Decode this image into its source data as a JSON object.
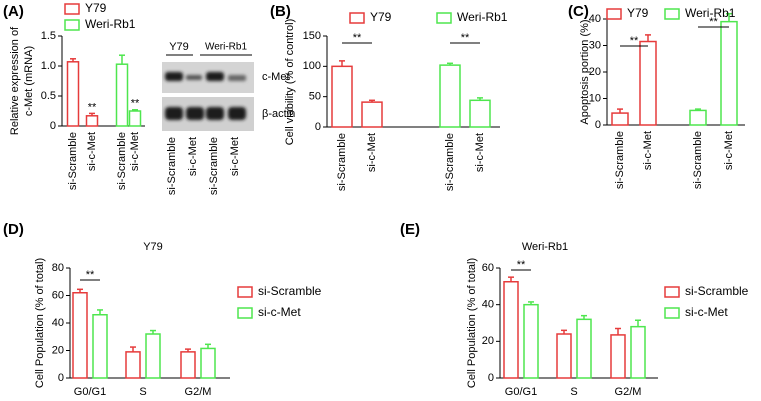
{
  "chart_data": [
    {
      "type": "bar",
      "panel": "(A)",
      "ylabel": [
        "Relative expression of",
        "c-Met (mRNA)"
      ],
      "categories": [
        "si-Scramble",
        "si-c-Met",
        "si-Scramble",
        "si-c-Met"
      ],
      "series": [
        {
          "name": "Y79",
          "color": "#e63b3b",
          "values": [
            1.07,
            0.17,
            null,
            null
          ],
          "errors": [
            0.05,
            0.04,
            null,
            null
          ]
        },
        {
          "name": "Weri-Rb1",
          "color": "#4ee64e",
          "values": [
            null,
            null,
            1.03,
            0.25
          ],
          "errors": [
            null,
            null,
            0.15,
            0.02
          ]
        }
      ],
      "ylim": [
        0,
        1.5
      ],
      "yticks": [
        0,
        0.5,
        {
          "value": 1,
          "label": "1.0"
        },
        1.5
      ],
      "legend": "top",
      "annotations": [
        "**",
        "**"
      ]
    },
    {
      "type": "bar",
      "panel": "(B)",
      "ylabel": "Cell viability (% of control)",
      "categories": [
        "si-Scramble",
        "si-c-Met",
        "si-Scramble",
        "si-c-Met"
      ],
      "series": [
        {
          "name": "Y79",
          "color": "#e63b3b",
          "values": [
            100,
            41,
            null,
            null
          ],
          "errors": [
            9,
            3,
            null,
            null
          ]
        },
        {
          "name": "Weri-Rb1",
          "color": "#4ee64e",
          "values": [
            null,
            null,
            102,
            44
          ],
          "errors": [
            null,
            null,
            3,
            4
          ]
        }
      ],
      "ylim": [
        0,
        150
      ],
      "yticks": [
        0,
        50,
        100,
        150
      ],
      "legend": "top",
      "annotations": [
        "**",
        "**"
      ]
    },
    {
      "type": "bar",
      "panel": "(C)",
      "ylabel": "Apoptosis portion (%)",
      "categories": [
        "si-Scramble",
        "si-c-Met",
        "si-Scramble",
        "si-c-Met"
      ],
      "series": [
        {
          "name": "Y79",
          "color": "#e63b3b",
          "values": [
            4.5,
            31.5,
            null,
            null
          ],
          "errors": [
            1.5,
            2.5,
            null,
            null
          ]
        },
        {
          "name": "Weri-Rb1",
          "color": "#4ee64e",
          "values": [
            null,
            null,
            5.5,
            39
          ],
          "errors": [
            null,
            null,
            0.5,
            3
          ]
        }
      ],
      "ylim": [
        0,
        40
      ],
      "yticks": [
        0,
        10,
        20,
        30,
        40
      ],
      "legend": "top",
      "annotations": [
        "**",
        "**"
      ]
    },
    {
      "type": "bar",
      "panel": "(D)",
      "title": "Y79",
      "ylabel": "Cell Population (% of total)",
      "categories": [
        "G0/G1",
        "S",
        "G2/M"
      ],
      "series": [
        {
          "name": "si-Scramble",
          "color": "#e63b3b",
          "values": [
            62,
            19,
            19
          ],
          "errors": [
            2.5,
            3.5,
            2
          ]
        },
        {
          "name": "si-c-Met",
          "color": "#4ee64e",
          "values": [
            46,
            32,
            21.5
          ],
          "errors": [
            3.5,
            2.5,
            3
          ]
        }
      ],
      "ylim": [
        0,
        80
      ],
      "yticks": [
        0,
        20,
        40,
        60,
        80
      ],
      "legend": "right",
      "annotations": [
        "**"
      ]
    },
    {
      "type": "bar",
      "panel": "(E)",
      "title": "Weri-Rb1",
      "ylabel": "Cell Population (% of total)",
      "categories": [
        "G0/G1",
        "S",
        "G2/M"
      ],
      "series": [
        {
          "name": "si-Scramble",
          "color": "#e63b3b",
          "values": [
            52.5,
            24,
            23.5
          ],
          "errors": [
            2.5,
            2,
            3.5
          ]
        },
        {
          "name": "si-c-Met",
          "color": "#4ee64e",
          "values": [
            40,
            32,
            28
          ],
          "errors": [
            1.5,
            2,
            3.5
          ]
        }
      ],
      "ylim": [
        0,
        60
      ],
      "yticks": [
        0,
        20,
        40,
        60
      ],
      "legend": "right",
      "annotations": [
        "**"
      ]
    }
  ],
  "blot": {
    "groups": [
      "Y79",
      "Weri-Rb1"
    ],
    "bands": [
      "c-Met",
      "β-actin"
    ],
    "lanes": [
      "si-Scramble",
      "si-c-Met",
      "si-Scramble",
      "si-c-Met"
    ]
  }
}
